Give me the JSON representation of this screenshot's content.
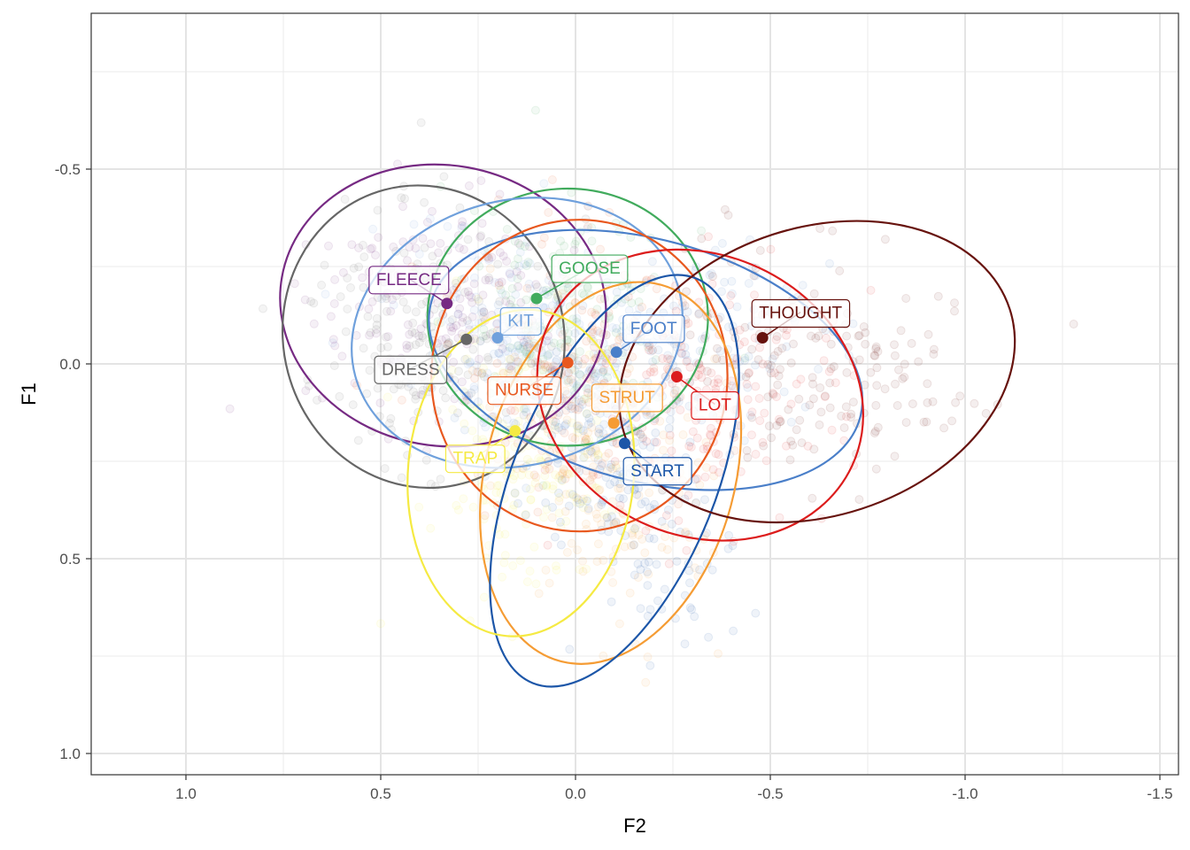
{
  "chart_data": {
    "type": "scatter",
    "title": "",
    "xlabel": "F2",
    "ylabel": "F1",
    "x_reversed": true,
    "y_reversed": true,
    "xlim": [
      1.25,
      -1.5
    ],
    "ylim": [
      -0.9,
      1.05
    ],
    "x_ticks": [
      1.0,
      0.5,
      0.0,
      -0.5,
      -1.0,
      -1.5
    ],
    "x_tick_labels": [
      "1.0",
      "0.5",
      "0.0",
      "-0.5",
      "-1.0",
      "-1.5"
    ],
    "y_ticks": [
      -0.5,
      0.0,
      0.5,
      1.0
    ],
    "y_tick_labels": [
      "-0.5",
      "0.0",
      "0.5",
      "1.0"
    ],
    "grid": true,
    "legend": "none",
    "background_points": "faint scatter of individual tokens in vowel colors",
    "series": [
      {
        "name": "FLEECE",
        "color": "#762a83",
        "mean": [
          0.33,
          -0.155
        ],
        "ellipse": {
          "cx": 0.34,
          "cy": -0.15,
          "rx": 0.42,
          "ry": 0.36,
          "angle": 10
        }
      },
      {
        "name": "DRESS",
        "color": "#666666",
        "mean": [
          0.28,
          -0.063
        ],
        "ellipse": {
          "cx": 0.39,
          "cy": -0.07,
          "rx": 0.36,
          "ry": 0.39,
          "angle": -15
        }
      },
      {
        "name": "GOOSE",
        "color": "#41ab5d",
        "mean": [
          0.1,
          -0.168
        ],
        "ellipse": {
          "cx": 0.02,
          "cy": -0.12,
          "rx": 0.36,
          "ry": 0.33,
          "angle": 0
        }
      },
      {
        "name": "KIT",
        "color": "#6fa0dc",
        "mean": [
          0.2,
          -0.067
        ],
        "ellipse": {
          "cx": 0.15,
          "cy": -0.08,
          "rx": 0.43,
          "ry": 0.34,
          "angle": -15
        }
      },
      {
        "name": "FOOT",
        "color": "#4a7fc9",
        "mean": [
          -0.105,
          -0.03
        ],
        "ellipse": {
          "cx": -0.18,
          "cy": -0.01,
          "rx": 0.57,
          "ry": 0.31,
          "angle": 15
        }
      },
      {
        "name": "NURSE",
        "color": "#e8581f",
        "mean": [
          0.02,
          -0.003
        ],
        "ellipse": {
          "cx": -0.01,
          "cy": 0.03,
          "rx": 0.38,
          "ry": 0.4,
          "angle": 0
        }
      },
      {
        "name": "STRUT",
        "color": "#f59c34",
        "mean": [
          -0.098,
          0.152
        ],
        "ellipse": {
          "cx": -0.09,
          "cy": 0.28,
          "rx": 0.32,
          "ry": 0.5,
          "angle": 15
        }
      },
      {
        "name": "LOT",
        "color": "#dc1c1c",
        "mean": [
          -0.26,
          0.033
        ],
        "ellipse": {
          "cx": -0.32,
          "cy": 0.08,
          "rx": 0.43,
          "ry": 0.36,
          "angle": 25
        }
      },
      {
        "name": "START",
        "color": "#1c56a8",
        "mean": [
          -0.126,
          0.204
        ],
        "ellipse": {
          "cx": -0.1,
          "cy": 0.3,
          "rx": 0.26,
          "ry": 0.56,
          "angle": 22
        }
      },
      {
        "name": "THOUGHT",
        "color": "#67130e",
        "mean": [
          -0.48,
          -0.067
        ],
        "ellipse": {
          "cx": -0.62,
          "cy": 0.02,
          "rx": 0.52,
          "ry": 0.37,
          "angle": -18
        }
      },
      {
        "name": "TRAP",
        "color": "#f5ea43",
        "mean": [
          0.155,
          0.172
        ],
        "ellipse": {
          "cx": 0.14,
          "cy": 0.28,
          "rx": 0.29,
          "ry": 0.42,
          "angle": 5
        }
      }
    ]
  }
}
